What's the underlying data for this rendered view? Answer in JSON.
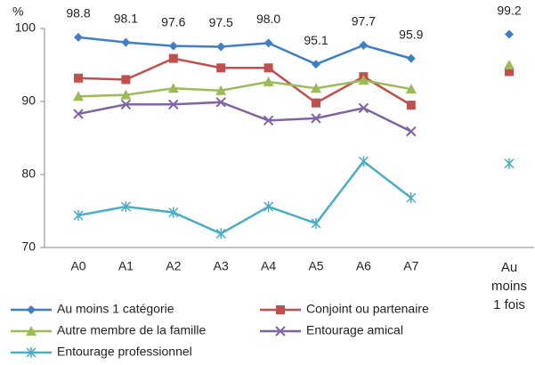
{
  "chart_data": {
    "type": "line",
    "y_label": "%",
    "categories": [
      "A0",
      "A1",
      "A2",
      "A3",
      "A4",
      "A5",
      "A6",
      "A7"
    ],
    "extra_category": "Au moins 1 fois",
    "ylim": [
      70,
      100
    ],
    "yticks": [
      70,
      80,
      90,
      100
    ],
    "legend": "bottom",
    "series": [
      {
        "name": "Au moins 1 catégorie",
        "color": "#3f7fc8",
        "marker": "diamond",
        "values": [
          98.8,
          98.1,
          97.6,
          97.5,
          98.0,
          95.1,
          97.7,
          95.9
        ],
        "value_labels": [
          "98.8",
          "98.1",
          "97.6",
          "97.5",
          "98.0",
          "95.1",
          "97.7",
          "95.9"
        ],
        "extra": 99.2,
        "extra_label": "99.2"
      },
      {
        "name": "Conjoint ou partenaire",
        "color": "#c0504d",
        "marker": "square",
        "values": [
          93.2,
          93.0,
          95.9,
          94.6,
          94.6,
          89.8,
          93.4,
          89.5
        ],
        "extra": 94.1
      },
      {
        "name": "Autre membre de la famille",
        "color": "#9bbb59",
        "marker": "triangle",
        "values": [
          90.7,
          90.9,
          91.8,
          91.5,
          92.7,
          91.8,
          92.9,
          91.7
        ],
        "extra": 95.0
      },
      {
        "name": "Entourage amical",
        "color": "#8064a2",
        "marker": "x",
        "values": [
          88.3,
          89.6,
          89.6,
          89.9,
          87.4,
          87.7,
          89.1,
          85.9
        ],
        "extra": null
      },
      {
        "name": "Entourage professionnel",
        "color": "#4bacc6",
        "marker": "star",
        "values": [
          74.4,
          75.6,
          74.8,
          71.9,
          75.6,
          73.3,
          81.8,
          76.8
        ],
        "extra": 81.5
      }
    ]
  }
}
